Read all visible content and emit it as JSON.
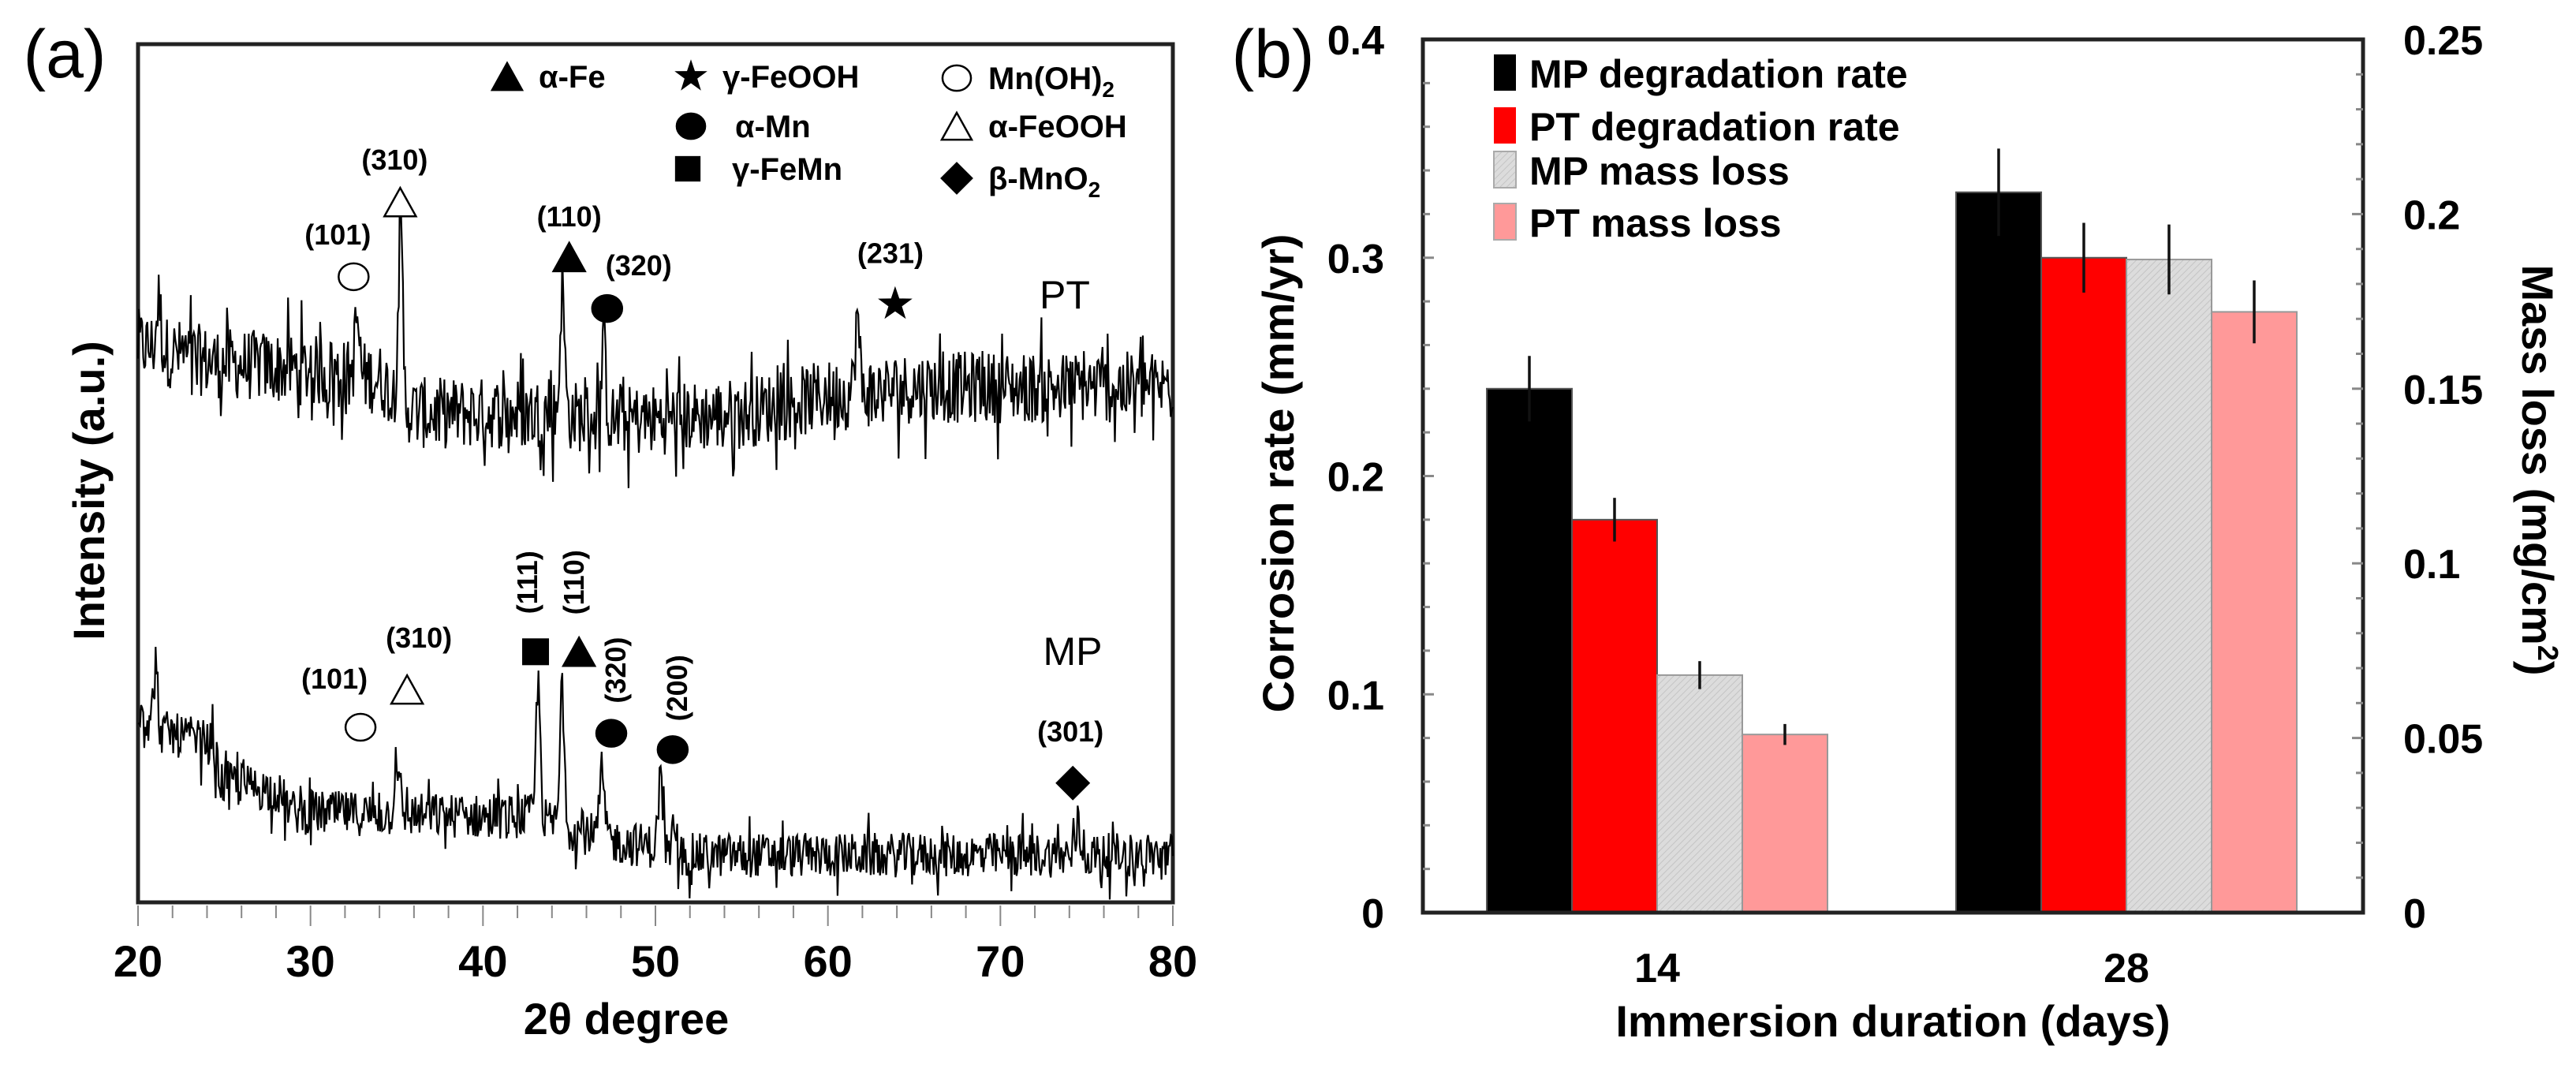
{
  "colors": {
    "mp_degradation": "#000000",
    "pt_degradation": "#ff0000",
    "mp_mass_loss": "#d9d9d9",
    "pt_mass_loss": "#ff9999",
    "trace": "#000000"
  },
  "chart_data": [
    {
      "type": "line",
      "panel_label": "(a)",
      "title": "",
      "xlabel": "2θ degree",
      "ylabel": "Intensity (a.u.)",
      "xlim": [
        20,
        80
      ],
      "ylim": [
        0,
        100
      ],
      "xticks": [
        "20",
        "30",
        "40",
        "50",
        "60",
        "70",
        "80"
      ],
      "grid": false,
      "legend_placement": "top-right",
      "legend": [
        {
          "symbol": "filled-triangle",
          "label": "α-Fe",
          "sub": ""
        },
        {
          "symbol": "star",
          "label": "γ-FeOOH",
          "sub": ""
        },
        {
          "symbol": "open-circle",
          "label": "Mn(OH)",
          "sub": "2"
        },
        {
          "symbol": "filled-circle",
          "label": "α-Mn",
          "sub": ""
        },
        {
          "symbol": "open-triangle",
          "label": "α-FeOOH",
          "sub": ""
        },
        {
          "symbol": "filled-square",
          "label": "γ-FeMn",
          "sub": ""
        },
        {
          "symbol": "filled-diamond",
          "label": "β-MnO",
          "sub": "2"
        }
      ],
      "series": [
        {
          "name": "PT",
          "baseline": [
            [
              20,
              65
            ],
            [
              24,
              63
            ],
            [
              30,
              62
            ],
            [
              34,
              61
            ],
            [
              36,
              57
            ],
            [
              44,
              57
            ],
            [
              48,
              56
            ],
            [
              55,
              57
            ],
            [
              60,
              59
            ],
            [
              65,
              60
            ],
            [
              80,
              60
            ]
          ],
          "peaks": [
            [
              21.2,
              70
            ],
            [
              32.7,
              68
            ],
            [
              35.2,
              79
            ],
            [
              44.6,
              72
            ],
            [
              47.0,
              65
            ],
            [
              61.7,
              68
            ]
          ],
          "markers": [
            {
              "symbol": "open-circle",
              "hkl": "(101)",
              "two_theta": 32.5,
              "intensity": 72.9
            },
            {
              "symbol": "open-triangle",
              "hkl": "(310)",
              "two_theta": 35.2,
              "intensity": 81.6
            },
            {
              "symbol": "filled-triangle",
              "hkl": "(110)",
              "two_theta": 45.0,
              "intensity": 75.2
            },
            {
              "symbol": "filled-circle",
              "hkl": "(320)",
              "two_theta": 47.2,
              "intensity": 69.2
            },
            {
              "symbol": "star",
              "hkl": "(231)",
              "two_theta": 63.9,
              "intensity": 69.7
            }
          ]
        },
        {
          "name": "MP",
          "baseline": [
            [
              20,
              23
            ],
            [
              21,
              20
            ],
            [
              24.3,
              18.5
            ],
            [
              24.8,
              14
            ],
            [
              28,
              13
            ],
            [
              29,
              10.5
            ],
            [
              40,
              10
            ],
            [
              42.8,
              10
            ],
            [
              47.8,
              7
            ],
            [
              50,
              6.5
            ],
            [
              51.2,
              5.5
            ],
            [
              80,
              5.5
            ]
          ],
          "peaks": [
            [
              21.0,
              26
            ],
            [
              35.0,
              17
            ],
            [
              43.2,
              25.5
            ],
            [
              44.6,
              26
            ],
            [
              46.9,
              15.5
            ],
            [
              50.3,
              14.7
            ],
            [
              74.5,
              9
            ]
          ],
          "markers": [
            {
              "symbol": "open-circle",
              "hkl": "(101)",
              "two_theta": 32.9,
              "intensity": 20.4
            },
            {
              "symbol": "open-triangle",
              "hkl": "(310)",
              "two_theta": 35.6,
              "intensity": 24.8
            },
            {
              "symbol": "filled-square",
              "hkl": "(111)",
              "two_theta": 43.05,
              "intensity": 29.2
            },
            {
              "symbol": "filled-triangle",
              "hkl": "(110)",
              "two_theta": 45.57,
              "intensity": 29.2
            },
            {
              "symbol": "filled-circle",
              "hkl": "(320)",
              "two_theta": 47.44,
              "intensity": 19.7
            },
            {
              "symbol": "filled-circle",
              "hkl": "(200)",
              "two_theta": 51.0,
              "intensity": 17.8
            },
            {
              "symbol": "filled-diamond",
              "hkl": "(301)",
              "two_theta": 74.2,
              "intensity": 13.9
            }
          ]
        }
      ]
    },
    {
      "type": "bar",
      "panel_label": "(b)",
      "title": "",
      "xlabel": "Immersion duration (days)",
      "ylabel": "Corrosion rate (mm/yr)",
      "ylabel_right": "Mass loss (mg/cm",
      "ylabel_right_sup": "2",
      "ylabel_right_end": ")",
      "categories": [
        "14",
        "28"
      ],
      "ylim": [
        0,
        0.4
      ],
      "ylim_right": [
        0,
        0.25
      ],
      "yticks": [
        "0",
        "0.1",
        "0.2",
        "0.3",
        "0.4"
      ],
      "yticks_right": [
        "0",
        "0.05",
        "0.1",
        "0.15",
        "0.2",
        "0.25"
      ],
      "grid": false,
      "legend_placement": "top-left",
      "series": [
        {
          "name": "MP degradation rate",
          "axis": "left",
          "values": [
            0.24,
            0.33
          ],
          "errors": [
            0.015,
            0.02
          ]
        },
        {
          "name": "PT degradation rate",
          "axis": "left",
          "values": [
            0.18,
            0.3
          ],
          "errors": [
            0.01,
            0.016
          ]
        },
        {
          "name": "MP mass loss",
          "axis": "right",
          "values": [
            0.068,
            0.187
          ],
          "errors": [
            0.004,
            0.01
          ]
        },
        {
          "name": "PT mass loss",
          "axis": "right",
          "values": [
            0.051,
            0.172
          ],
          "errors": [
            0.003,
            0.009
          ]
        }
      ]
    }
  ]
}
